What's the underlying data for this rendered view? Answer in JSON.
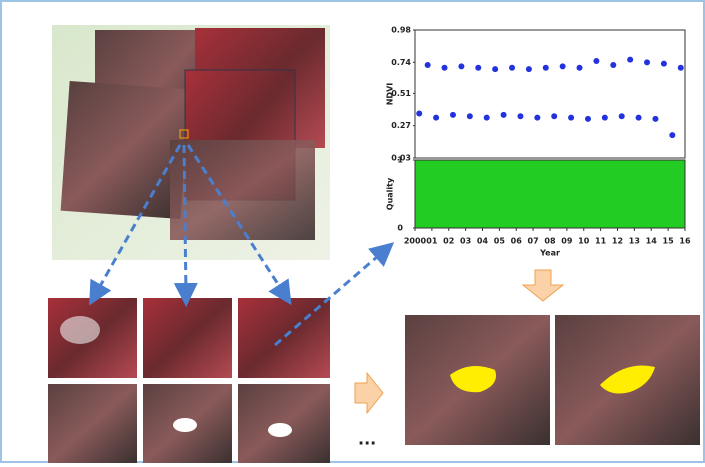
{
  "chart_data": {
    "type": "scatter",
    "y_label": "NDVI",
    "x_label": "Year",
    "quality_label": "Quality",
    "x": [
      2000.25,
      2000.75,
      2001.25,
      2001.75,
      2002.25,
      2002.75,
      2003.25,
      2003.75,
      2004.25,
      2004.75,
      2005.25,
      2005.75,
      2006.25,
      2006.75,
      2007.25,
      2007.75,
      2008.25,
      2008.75,
      2009.25,
      2009.75,
      2010.25,
      2010.75,
      2011.25,
      2011.75,
      2012.25,
      2012.75,
      2013.25,
      2013.75,
      2014.25,
      2014.75,
      2015.25,
      2015.75
    ],
    "series": [
      {
        "color": "#2233dd",
        "values": [
          0.36,
          0.72,
          0.33,
          0.7,
          0.35,
          0.71,
          0.34,
          0.7,
          0.33,
          0.69,
          0.35,
          0.7,
          0.34,
          0.69,
          0.33,
          0.7,
          0.34,
          0.71,
          0.33,
          0.7,
          0.32,
          0.75,
          0.33,
          0.72,
          0.34,
          0.76,
          0.33,
          0.74,
          0.32,
          0.73,
          0.2,
          0.7
        ]
      }
    ],
    "xlim": [
      2000,
      2016
    ],
    "xticks": [
      {
        "value": 2000,
        "label": "2000"
      },
      {
        "value": 2001,
        "label": "01"
      },
      {
        "value": 2002,
        "label": "02"
      },
      {
        "value": 2003,
        "label": "03"
      },
      {
        "value": 2004,
        "label": "04"
      },
      {
        "value": 2005,
        "label": "05"
      },
      {
        "value": 2006,
        "label": "06"
      },
      {
        "value": 2007,
        "label": "07"
      },
      {
        "value": 2008,
        "label": "08"
      },
      {
        "value": 2009,
        "label": "09"
      },
      {
        "value": 2010,
        "label": "10"
      },
      {
        "value": 2011,
        "label": "11"
      },
      {
        "value": 2012,
        "label": "12"
      },
      {
        "value": 2013,
        "label": "13"
      },
      {
        "value": 2014,
        "label": "14"
      },
      {
        "value": 2015,
        "label": "15"
      },
      {
        "value": 2016,
        "label": "16"
      }
    ],
    "ylim": [
      0.03,
      0.98
    ],
    "yticks": [
      0.03,
      0.27,
      0.51,
      0.74,
      0.98
    ],
    "quality_ylim": [
      0,
      1
    ],
    "quality_yticks": [
      0,
      1
    ]
  },
  "ellipsis": "..."
}
